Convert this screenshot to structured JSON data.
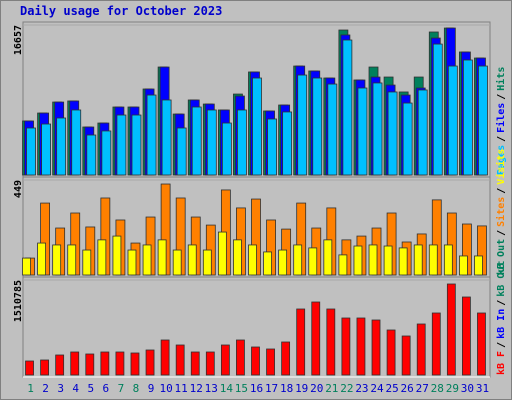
{
  "chart_data": {
    "type": "bar",
    "title": "Daily usage for October 2023",
    "categories": [
      "1",
      "2",
      "3",
      "4",
      "5",
      "6",
      "7",
      "8",
      "9",
      "10",
      "11",
      "12",
      "13",
      "14",
      "15",
      "16",
      "17",
      "18",
      "19",
      "20",
      "21",
      "22",
      "23",
      "24",
      "25",
      "26",
      "27",
      "28",
      "29",
      "30",
      "31"
    ],
    "weekend_color": "#00805c",
    "weekday_color": "#0000cc",
    "weekends": [
      0,
      6,
      7,
      13,
      14,
      20,
      21,
      27,
      28
    ],
    "legend_separator": "/",
    "panels": [
      {
        "ylim": [
          0,
          16657
        ],
        "legend": [
          {
            "name": "Pages",
            "color": "#00c0ff"
          },
          {
            "name": "Files",
            "color": "#0000ff"
          },
          {
            "name": "Hits",
            "color": "#00805c"
          }
        ],
        "series": [
          {
            "name": "Hits",
            "color": "#00805c",
            "values": [
              6000,
              6880,
              8100,
              8220,
              5330,
              5770,
              7550,
              7550,
              9550,
              11990,
              6770,
              8330,
              7880,
              7220,
              8990,
              11440,
              7110,
              7770,
              12100,
              11550,
              10770,
              16100,
              10550,
              11990,
              10880,
              9220,
              10880,
              15880,
              16320,
              13660,
              12990
            ]
          },
          {
            "name": "Files",
            "color": "#0000ff",
            "values": [
              6000,
              6880,
              8100,
              8220,
              5330,
              5770,
              7550,
              7550,
              9550,
              11990,
              6770,
              8330,
              7880,
              7220,
              8770,
              11440,
              7110,
              7770,
              12100,
              11550,
              10770,
              15550,
              10550,
              10880,
              9990,
              8880,
              9660,
              15210,
              16320,
              13660,
              12990
            ]
          },
          {
            "name": "Pages",
            "color": "#00c0ff",
            "values": [
              5220,
              5660,
              6330,
              7220,
              4440,
              4890,
              6660,
              6660,
              8880,
              8330,
              5220,
              7550,
              7220,
              5770,
              7220,
              10770,
              6220,
              7000,
              11100,
              10770,
              10100,
              14990,
              9660,
              10220,
              9220,
              7990,
              9440,
              14540,
              12100,
              12770,
              12100
            ]
          }
        ]
      },
      {
        "ylim": [
          0,
          449
        ],
        "legend": [
          {
            "name": "kB Out",
            "color": "#00805c"
          },
          {
            "name": "Sites",
            "color": "#ff8000"
          },
          {
            "name": "Visits",
            "color": "#ffff00"
          }
        ],
        "series": [
          {
            "name": "Sites",
            "color": "#ff8000",
            "values": [
              80,
              340,
              222,
              293,
              227,
              364,
              260,
              151,
              274,
              430,
              364,
              274,
              236,
              402,
              317,
              359,
              260,
              217,
              340,
              222,
              317,
              166,
              184,
              222,
              293,
              156,
              194,
              355,
              293,
              241,
              232
            ]
          },
          {
            "name": "Visits",
            "color": "#ffff00",
            "values": [
              80,
              151,
              142,
              142,
              118,
              166,
              184,
              118,
              142,
              166,
              118,
              142,
              118,
              203,
              166,
              142,
              109,
              118,
              142,
              128,
              166,
              95,
              137,
              142,
              137,
              128,
              142,
              142,
              142,
              90,
              90
            ]
          }
        ]
      },
      {
        "ylim": [
          0,
          1510785
        ],
        "legend": [
          {
            "name": "kB F",
            "color": "#ff0000"
          },
          {
            "name": "kB In",
            "color": "#0000ff"
          },
          {
            "name": "kB Out",
            "color": "#00805c"
          }
        ],
        "series": [
          {
            "name": "kB F",
            "color": "#ff0000",
            "values": [
              222600,
              238500,
              318000,
              365800,
              334000,
              365800,
              365800,
              349900,
              397600,
              556600,
              477100,
              365800,
              365800,
              477100,
              556600,
              445300,
              413500,
              524800,
              1049600,
              1160900,
              1049600,
              906500,
              906500,
              874700,
              715600,
              620200,
              811100,
              986000,
              1447200,
              1240400,
              986000
            ]
          }
        ]
      }
    ]
  }
}
